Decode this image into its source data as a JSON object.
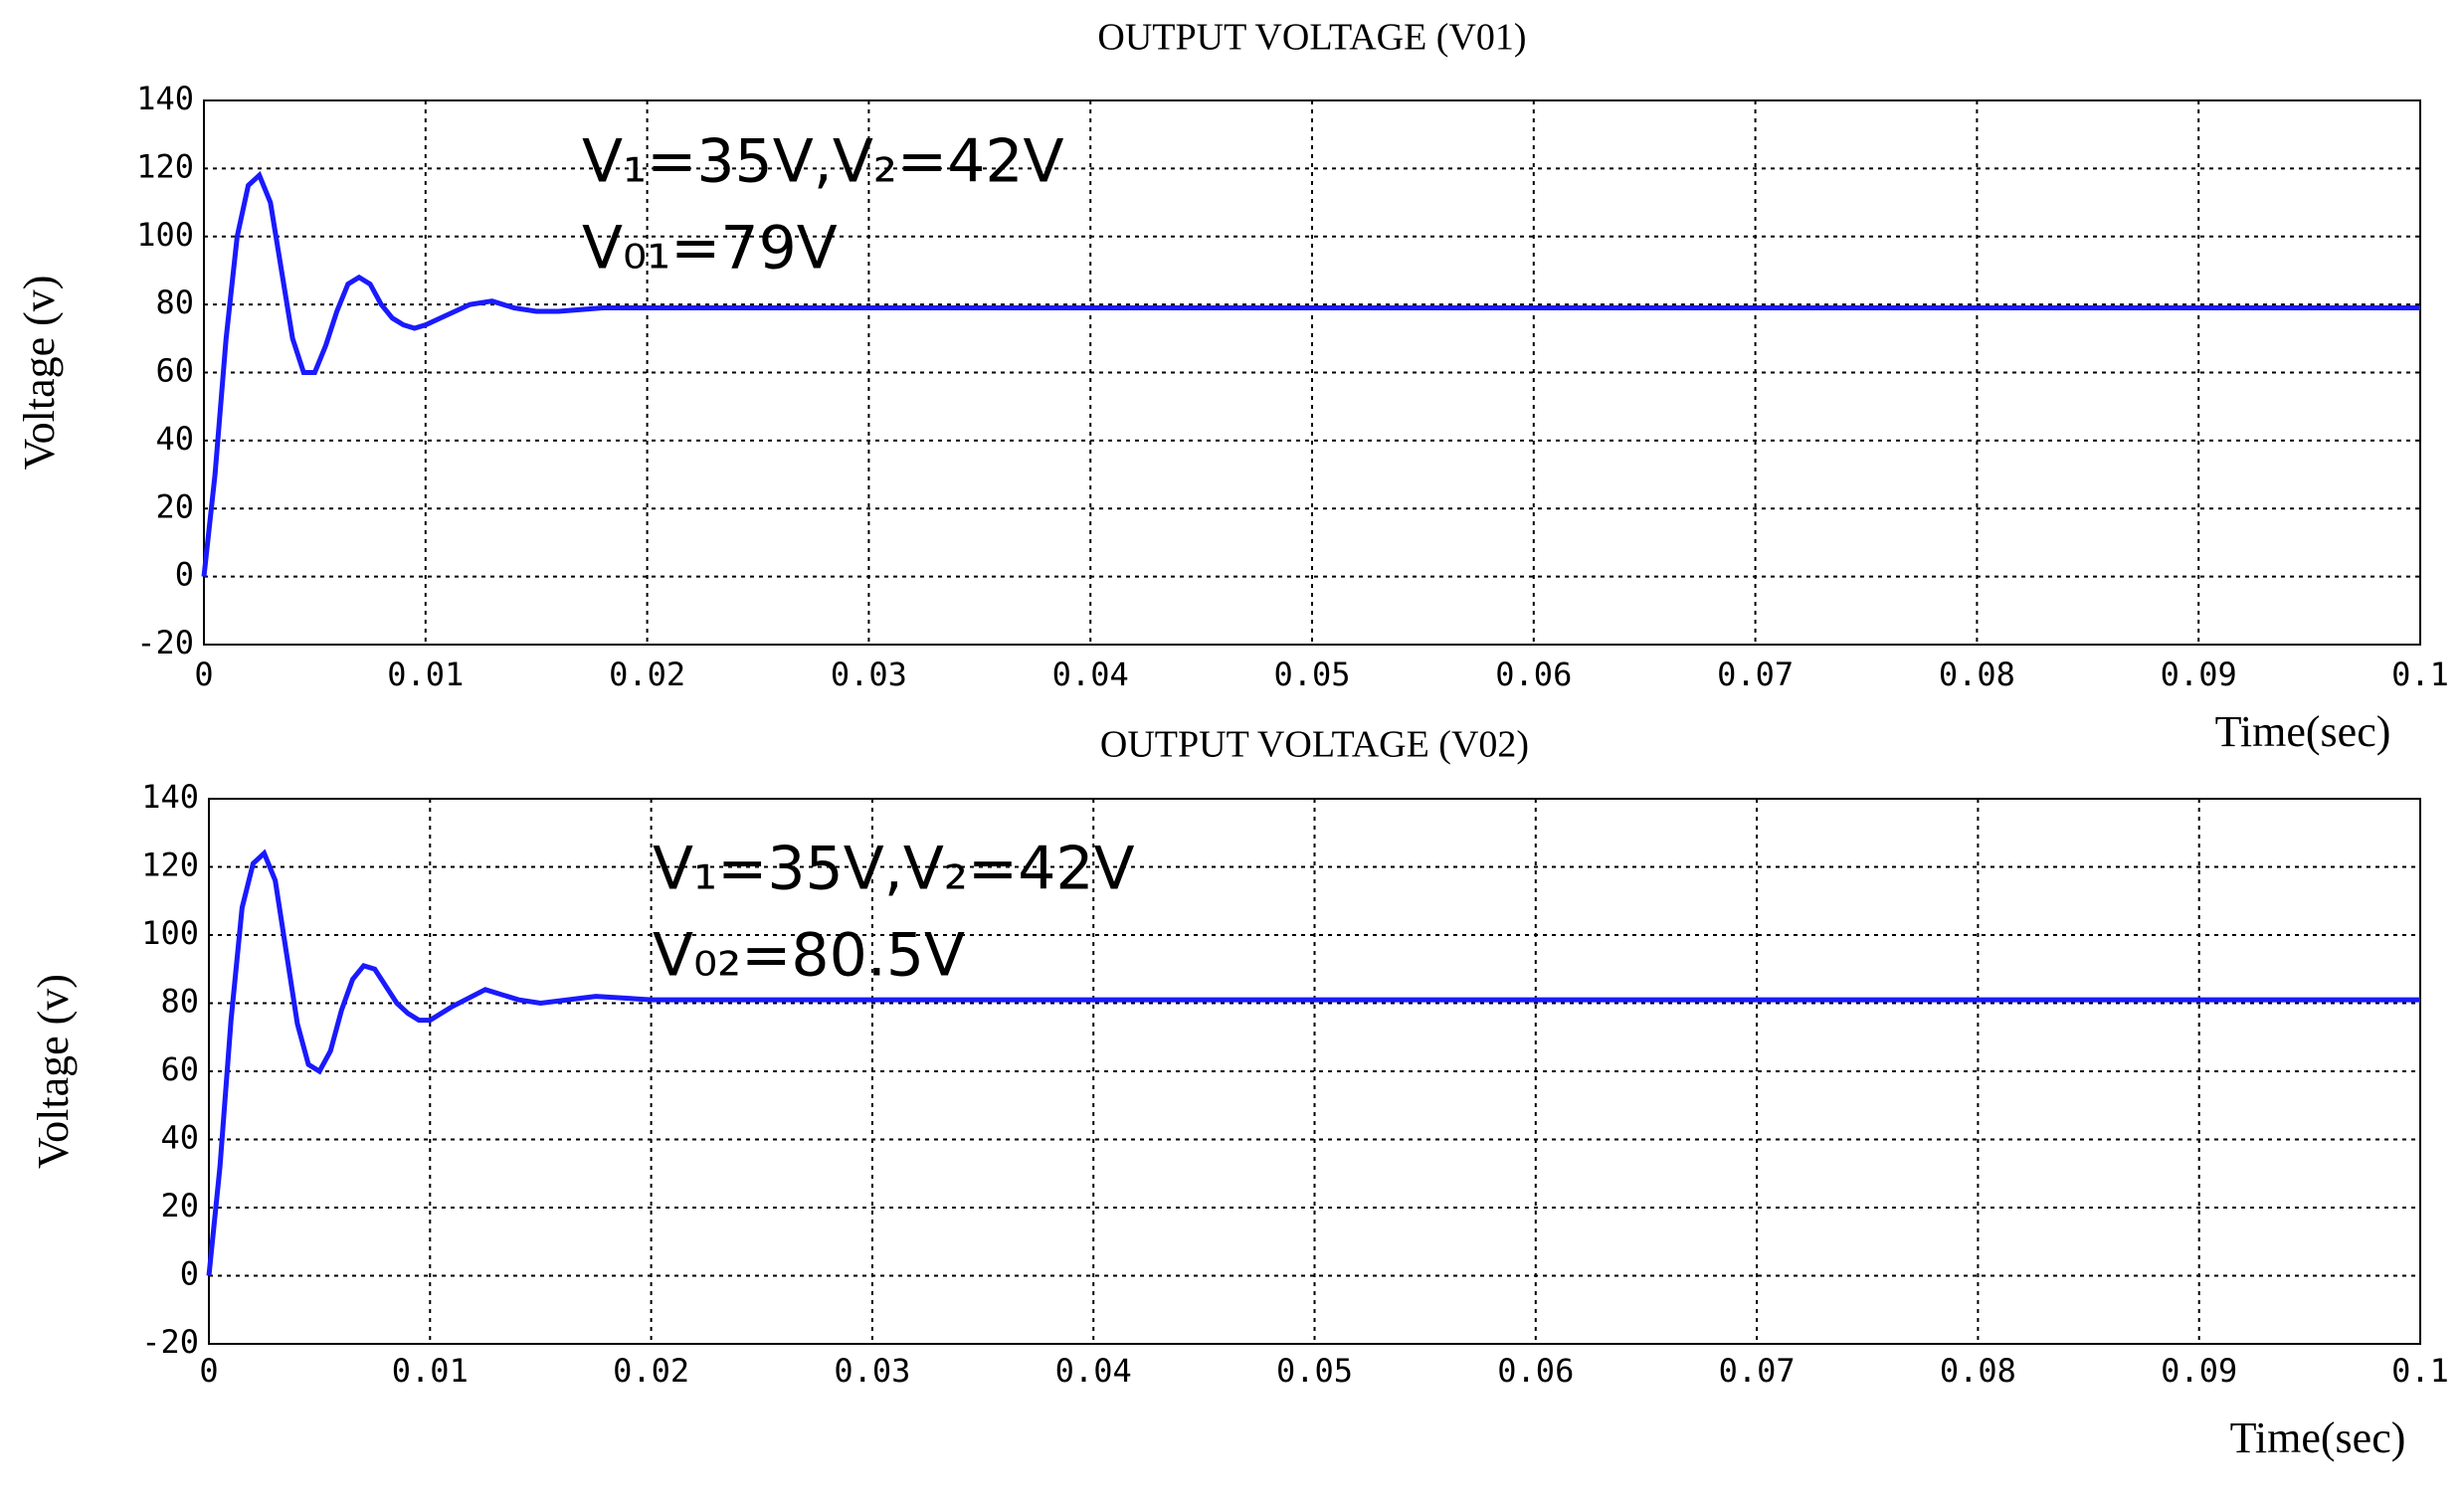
{
  "chart_data": [
    {
      "type": "line",
      "title": "OUTPUT VOLTAGE (V01)",
      "x_label": "Time(sec)",
      "y_label": "Voltage (v)",
      "annotations": [
        "V₁=35V,V₂=42V",
        "V₀₁=79V"
      ],
      "x": [
        0,
        0.0005,
        0.001,
        0.0015,
        0.002,
        0.0025,
        0.003,
        0.0035,
        0.004,
        0.0045,
        0.005,
        0.0055,
        0.006,
        0.0065,
        0.007,
        0.0075,
        0.008,
        0.0085,
        0.009,
        0.0095,
        0.01,
        0.011,
        0.012,
        0.013,
        0.014,
        0.015,
        0.016,
        0.018,
        0.02,
        0.03,
        0.04,
        0.05,
        0.06,
        0.07,
        0.08,
        0.09,
        0.1
      ],
      "series": [
        {
          "name": "V01",
          "color": "#1a1aff",
          "values": [
            0,
            30,
            70,
            100,
            115,
            118,
            110,
            90,
            70,
            60,
            60,
            68,
            78,
            86,
            88,
            86,
            80,
            76,
            74,
            73,
            74,
            77,
            80,
            81,
            79,
            78,
            78,
            79,
            79,
            79,
            79,
            79,
            79,
            79,
            79,
            79,
            79
          ]
        }
      ],
      "xlim": [
        0,
        0.1
      ],
      "xticks": [
        0,
        0.01,
        0.02,
        0.03,
        0.04,
        0.05,
        0.06,
        0.07,
        0.08,
        0.09,
        0.1
      ],
      "ylim": [
        -20,
        140
      ],
      "yticks": [
        -20,
        0,
        20,
        40,
        60,
        80,
        100,
        120,
        140
      ],
      "grid": true
    },
    {
      "type": "line",
      "title": "OUTPUT VOLTAGE (V02)",
      "x_label": "Time(sec)",
      "y_label": "Voltage (v)",
      "annotations": [
        "V₁=35V,V₂=42V",
        "V₀₂=80.5V"
      ],
      "x": [
        0,
        0.0005,
        0.001,
        0.0015,
        0.002,
        0.0025,
        0.003,
        0.0035,
        0.004,
        0.0045,
        0.005,
        0.0055,
        0.006,
        0.0065,
        0.007,
        0.0075,
        0.008,
        0.0085,
        0.009,
        0.0095,
        0.01,
        0.011,
        0.0125,
        0.014,
        0.015,
        0.0175,
        0.02,
        0.03,
        0.04,
        0.05,
        0.06,
        0.07,
        0.08,
        0.09,
        0.1
      ],
      "series": [
        {
          "name": "V02",
          "color": "#1a1aff",
          "values": [
            0,
            32,
            75,
            108,
            121,
            124,
            116,
            95,
            74,
            62,
            60,
            66,
            78,
            87,
            91,
            90,
            85,
            80,
            77,
            75,
            75,
            79,
            84,
            81,
            80,
            82,
            81,
            81,
            81,
            81,
            81,
            81,
            81,
            81,
            81
          ]
        }
      ],
      "xlim": [
        0,
        0.1
      ],
      "xticks": [
        0,
        0.01,
        0.02,
        0.03,
        0.04,
        0.05,
        0.06,
        0.07,
        0.08,
        0.09,
        0.1
      ],
      "ylim": [
        -20,
        140
      ],
      "yticks": [
        -20,
        0,
        20,
        40,
        60,
        80,
        100,
        120,
        140
      ],
      "grid": true
    }
  ]
}
